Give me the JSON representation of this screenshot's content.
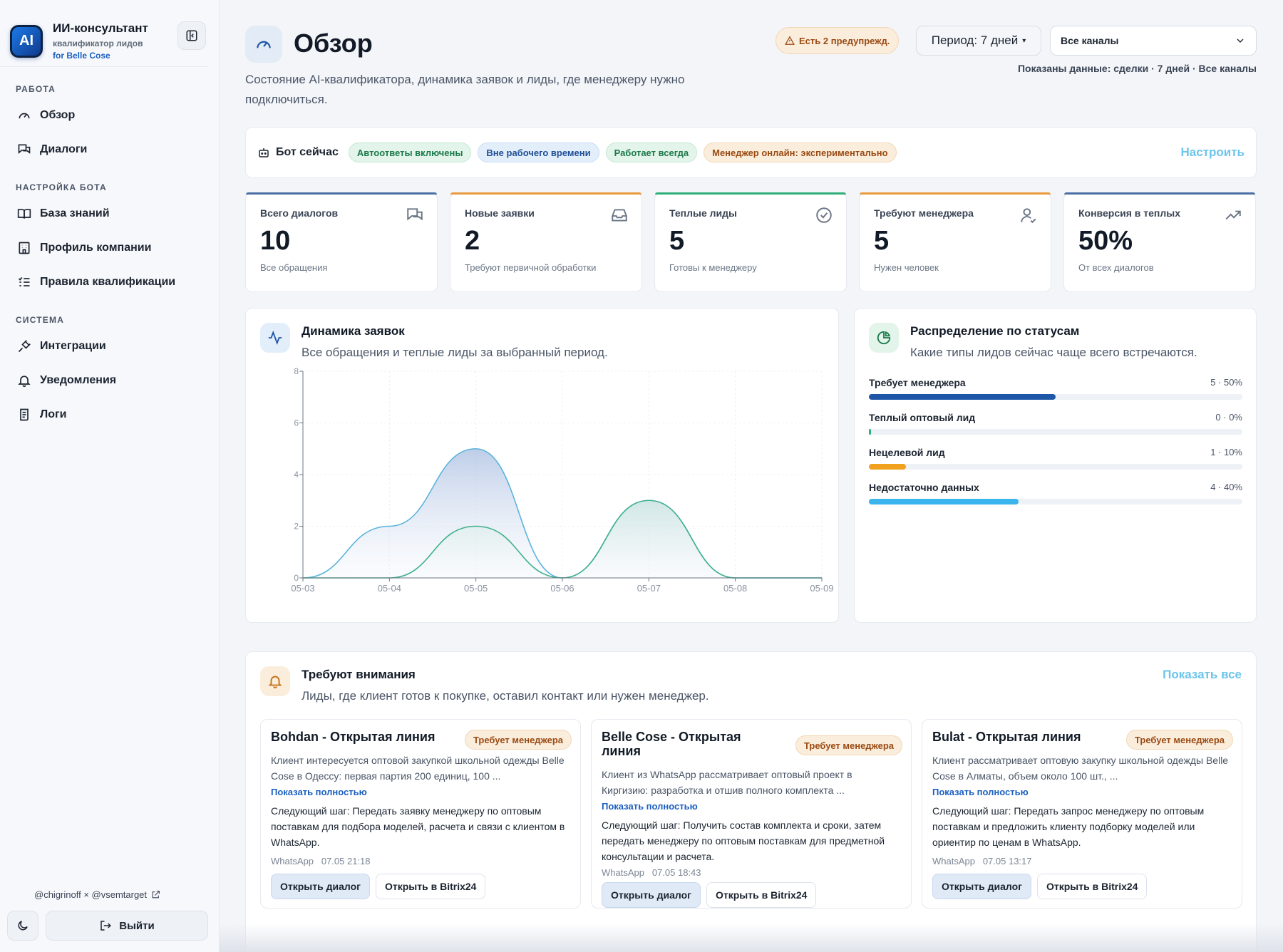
{
  "brand": {
    "logo": "AI",
    "title": "ИИ-консультант",
    "sub": "квалификатор лидов",
    "sub2": "for Belle Cose"
  },
  "nav": {
    "section_work": "РАБОТА",
    "overview": "Обзор",
    "dialogs": "Диалоги",
    "section_bot": "НАСТРОЙКА БОТА",
    "kb": "База знаний",
    "company": "Профиль компании",
    "rules": "Правила квалификации",
    "section_system": "СИСТЕМА",
    "integrations": "Интеграции",
    "notifications": "Уведомления",
    "logs": "Логи"
  },
  "footer": {
    "credit": "@chigrinoff × @vsemtarget",
    "logout": "Выйти"
  },
  "header": {
    "title": "Обзор",
    "description": "Состояние AI-квалификатора, динамика заявок и лиды, где менеджеру нужно подключиться.",
    "warning": "Есть 2 предупрежд.",
    "period": "Период: 7 дней",
    "channel": "Все каналы",
    "meta": "Показаны данные: сделки · 7 дней · Все каналы"
  },
  "bot": {
    "label": "Бот сейчас",
    "pills": [
      "Автоответы включены",
      "Вне рабочего времени",
      "Работает всегда",
      "Менеджер онлайн: экспериментально"
    ],
    "configure": "Настроить"
  },
  "stats": [
    {
      "label": "Всего диалогов",
      "value": "10",
      "sub": "Все обращения",
      "color": "#4a6fa5"
    },
    {
      "label": "Новые заявки",
      "value": "2",
      "sub": "Требуют первичной обработки",
      "color": "#e89a3c"
    },
    {
      "label": "Теплые лиды",
      "value": "5",
      "sub": "Готовы к менеджеру",
      "color": "#2fae7a"
    },
    {
      "label": "Требуют менеджера",
      "value": "5",
      "sub": "Нужен человек",
      "color": "#e89a3c"
    },
    {
      "label": "Конверсия в теплых",
      "value": "50%",
      "sub": "От всех диалогов",
      "color": "#4a6fa5"
    }
  ],
  "chart": {
    "title": "Динамика заявок",
    "subtitle": "Все обращения и теплые лиды за выбранный период."
  },
  "chart_data": {
    "type": "area",
    "x": [
      "05-03",
      "05-04",
      "05-05",
      "05-06",
      "05-07",
      "05-08",
      "05-09"
    ],
    "series": [
      {
        "values": [
          0,
          2,
          5,
          0,
          3,
          0,
          0
        ]
      },
      {
        "values": [
          0,
          0,
          2,
          0,
          3,
          0,
          0
        ]
      }
    ],
    "yticks": [
      "0",
      "2",
      "4",
      "6",
      "8"
    ],
    "ylim": [
      0,
      8
    ]
  },
  "distribution": {
    "title": "Распределение по статусам",
    "subtitle": "Какие типы лидов сейчас чаще всего встречаются.",
    "rows": [
      {
        "label": "Требует менеджера",
        "value": "5 · 50%",
        "fraction": 0.5,
        "color": "#1e56a8"
      },
      {
        "label": "Теплый оптовый лид",
        "value": "0 · 0%",
        "fraction": 0.0,
        "color": "#2fae7a"
      },
      {
        "label": "Нецелевой лид",
        "value": "1 · 10%",
        "fraction": 0.1,
        "color": "#f0a21e"
      },
      {
        "label": "Недостаточно данных",
        "value": "4 · 40%",
        "fraction": 0.4,
        "color": "#3ab4ec"
      }
    ]
  },
  "attention": {
    "title": "Требуют внимания",
    "subtitle": "Лиды, где клиент готов к покупке, оставил контакт или нужен менеджер.",
    "show_all": "Показать все",
    "leads": [
      {
        "title": "Bohdan - Открытая линия",
        "badge": "Требует менеджера",
        "text": "Клиент интересуется оптовой закупкой школьной одежды Belle Cose в Одессу: первая партия 200 единиц, 100 ...",
        "more": "Показать полностью",
        "next": "Следующий шаг: Передать заявку менеджеру по оптовым поставкам для подбора моделей, расчета и связи с клиентом в WhatsApp.",
        "channel": "WhatsApp",
        "time": "07.05 21:18",
        "open": "Открыть диалог",
        "bitrix": "Открыть в Bitrix24"
      },
      {
        "title": "Belle Cose - Открытая линия",
        "badge": "Требует менеджера",
        "text": "Клиент из WhatsApp рассматривает оптовый проект в Киргизию: разработка и отшив полного комплекта ...",
        "more": "Показать полностью",
        "next": "Следующий шаг: Получить состав комплекта и сроки, затем передать менеджеру по оптовым поставкам для предметной консультации и расчета.",
        "channel": "WhatsApp",
        "time": "07.05 18:43",
        "open": "Открыть диалог",
        "bitrix": "Открыть в Bitrix24"
      },
      {
        "title": "Bulat - Открытая линия",
        "badge": "Требует менеджера",
        "text": "Клиент рассматривает оптовую закупку школьной одежды Belle Cose в Алматы, объем около 100 шт., ...",
        "more": "Показать полностью",
        "next": "Следующий шаг: Передать запрос менеджеру по оптовым поставкам и предложить клиенту подборку моделей или ориентир по ценам в WhatsApp.",
        "channel": "WhatsApp",
        "time": "07.05 13:17",
        "open": "Открыть диалог",
        "bitrix": "Открыть в Bitrix24"
      }
    ]
  }
}
